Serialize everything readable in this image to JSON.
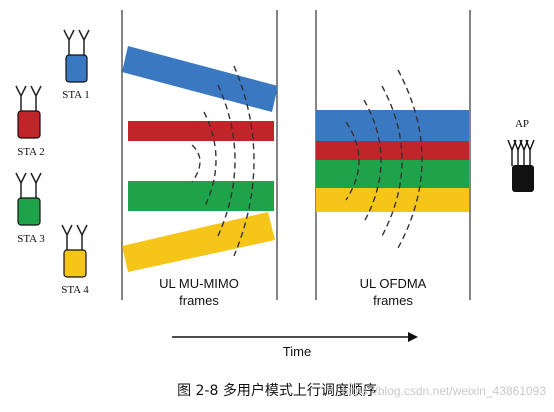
{
  "stations": [
    {
      "label": "STA 1",
      "color": "#3a78c2"
    },
    {
      "label": "STA 2",
      "color": "#c0252a"
    },
    {
      "label": "STA 3",
      "color": "#1fa34a"
    },
    {
      "label": "STA 4",
      "color": "#f5c518"
    }
  ],
  "ap": {
    "label": "AP",
    "color": "#111111"
  },
  "mu_mimo": {
    "label_line1": "UL MU-MIMO",
    "label_line2": "frames"
  },
  "ofdma": {
    "label_line1": "UL OFDMA",
    "label_line2": "frames"
  },
  "time_label": "Time",
  "caption": "图 2-8  多用户模式上行调度顺序",
  "watermark": "https://blog.csdn.net/weixin_43861093",
  "colors": {
    "blue": "#3a78c2",
    "red": "#c0252a",
    "green": "#1fa34a",
    "yellow": "#f5c518",
    "line": "#333333"
  }
}
